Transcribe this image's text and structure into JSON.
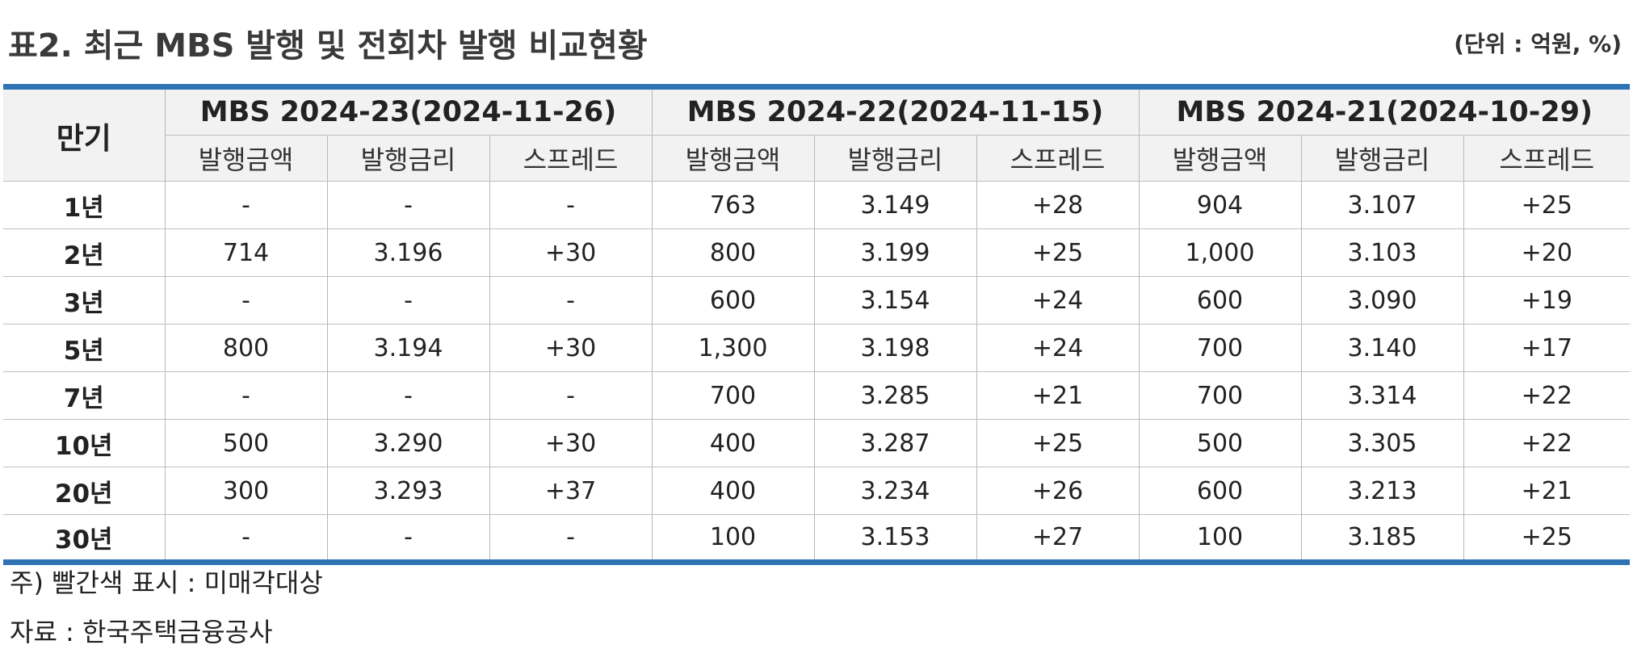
{
  "title": "표2. 최근 MBS 발행 및 전회차 발행 비교현황",
  "unit": "(단위 : 억원, %)",
  "table": {
    "term_header": "만기",
    "groups": [
      "MBS 2024-23(2024-11-26)",
      "MBS 2024-22(2024-11-15)",
      "MBS 2024-21(2024-10-29)"
    ],
    "sub_headers": [
      "발행금액",
      "발행금리",
      "스프레드",
      "발행금액",
      "발행금리",
      "스프레드",
      "발행금액",
      "발행금리",
      "스프레드"
    ],
    "rows": [
      {
        "term": "1년",
        "cells": [
          "-",
          "-",
          "-",
          "763",
          "3.149",
          "+28",
          "904",
          "3.107",
          "+25"
        ]
      },
      {
        "term": "2년",
        "cells": [
          "714",
          "3.196",
          "+30",
          "800",
          "3.199",
          "+25",
          "1,000",
          "3.103",
          "+20"
        ]
      },
      {
        "term": "3년",
        "cells": [
          "-",
          "-",
          "-",
          "600",
          "3.154",
          "+24",
          "600",
          "3.090",
          "+19"
        ]
      },
      {
        "term": "5년",
        "cells": [
          "800",
          "3.194",
          "+30",
          "1,300",
          "3.198",
          "+24",
          "700",
          "3.140",
          "+17"
        ]
      },
      {
        "term": "7년",
        "cells": [
          "-",
          "-",
          "-",
          "700",
          "3.285",
          "+21",
          "700",
          "3.314",
          "+22"
        ]
      },
      {
        "term": "10년",
        "cells": [
          "500",
          "3.290",
          "+30",
          "400",
          "3.287",
          "+25",
          "500",
          "3.305",
          "+22"
        ]
      },
      {
        "term": "20년",
        "cells": [
          "300",
          "3.293",
          "+37",
          "400",
          "3.234",
          "+26",
          "600",
          "3.213",
          "+21"
        ]
      },
      {
        "term": "30년",
        "cells": [
          "-",
          "-",
          "-",
          "100",
          "3.153",
          "+27",
          "100",
          "3.185",
          "+25"
        ]
      }
    ]
  },
  "note": "주) 빨간색 표시 : 미매각대상",
  "source": "자료 : 한국주택금융공사",
  "colors": {
    "accent_rule": "#2e74b5",
    "header_bg": "#f2f2f2"
  }
}
